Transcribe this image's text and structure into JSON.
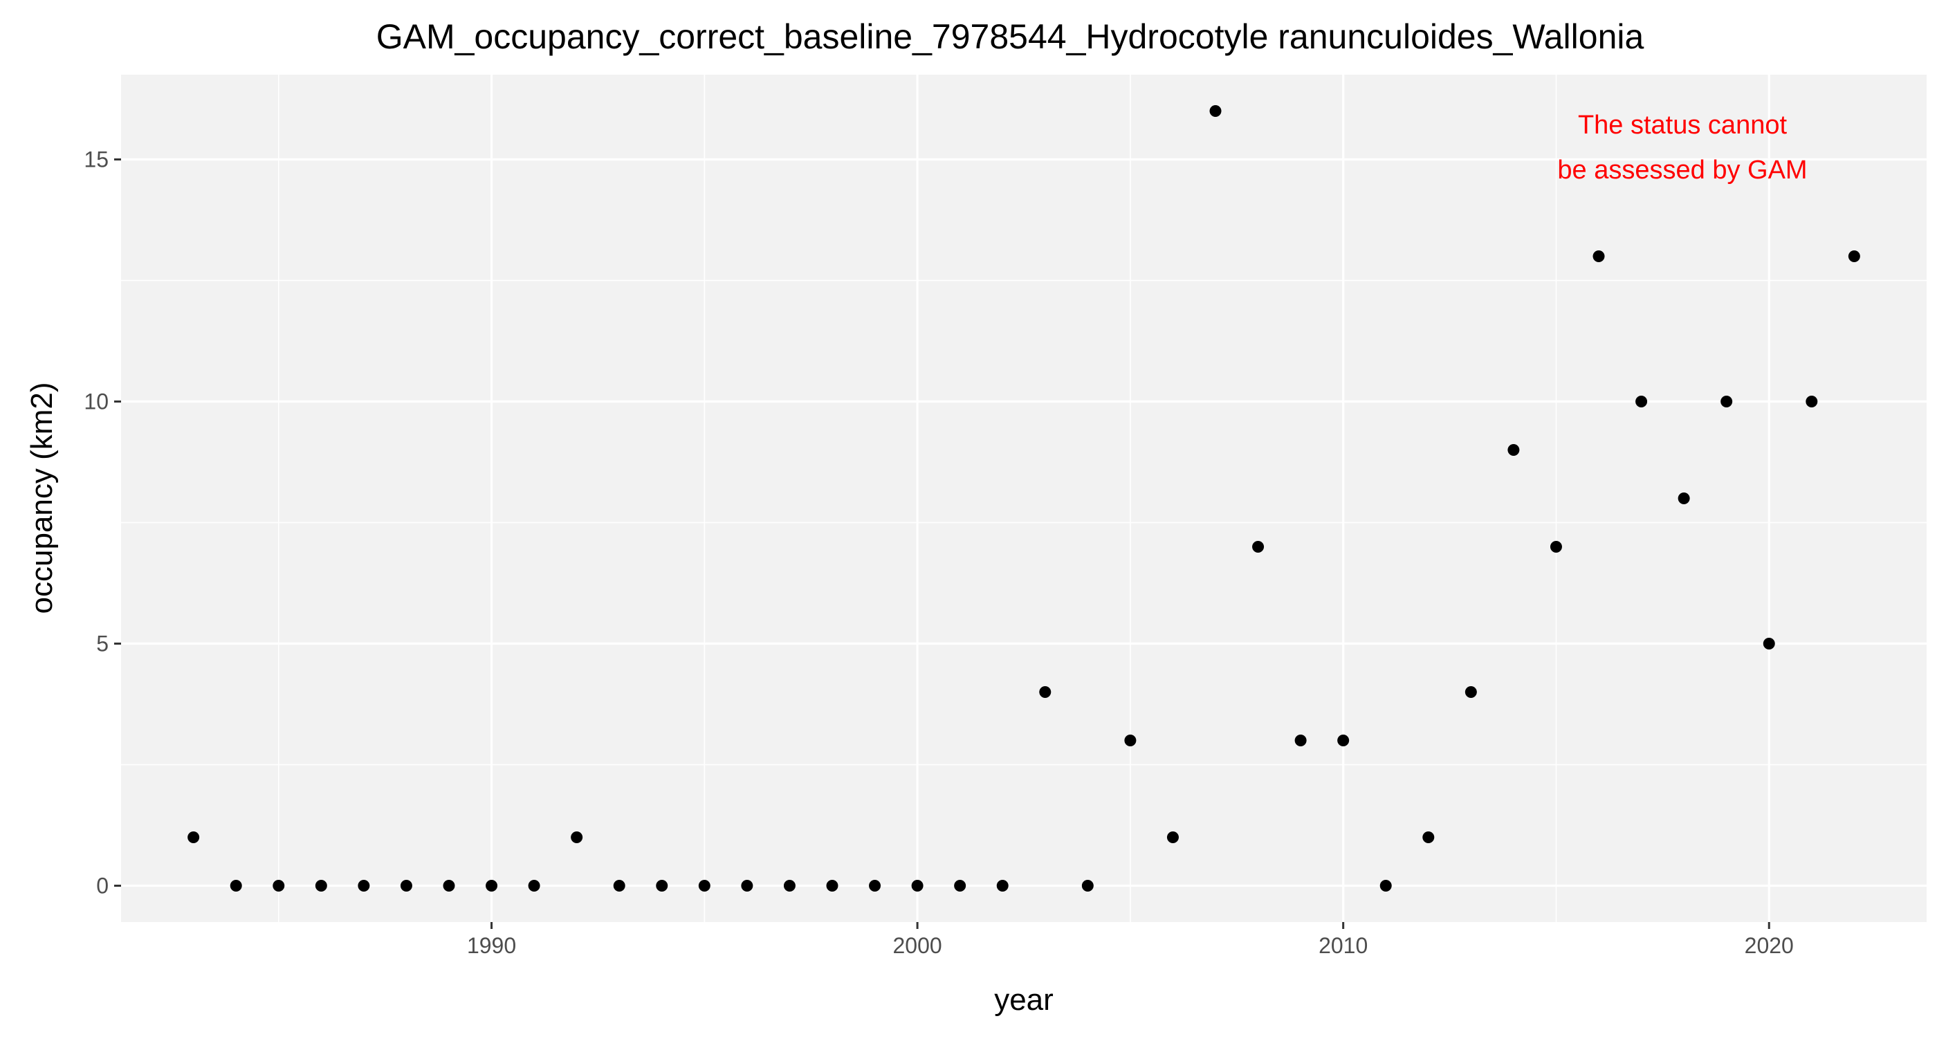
{
  "chart_data": {
    "type": "scatter",
    "title": "GAM_occupancy_correct_baseline_7978544_Hydrocotyle ranunculoides_Wallonia",
    "xlabel": "year",
    "ylabel": "occupancy (km2)",
    "xlim": [
      1981.3,
      2023.7
    ],
    "ylim": [
      -0.75,
      16.75
    ],
    "x_ticks": [
      1990,
      2000,
      2010,
      2020
    ],
    "y_ticks": [
      0,
      5,
      10,
      15
    ],
    "x_tick_labels": [
      "1990",
      "2000",
      "2010",
      "2020"
    ],
    "y_tick_labels": [
      "0",
      "5",
      "10",
      "15"
    ],
    "grid": true,
    "panel_background": "#f2f2f2",
    "grid_color": "#ffffff",
    "point_color": "#000000",
    "annotation": {
      "lines": [
        "The status cannot",
        "be assessed by GAM"
      ],
      "color": "#ff0000",
      "position": "top-right"
    },
    "x": [
      1983,
      1984,
      1985,
      1986,
      1987,
      1988,
      1989,
      1990,
      1991,
      1992,
      1993,
      1994,
      1995,
      1996,
      1997,
      1998,
      1999,
      2000,
      2001,
      2002,
      2003,
      2004,
      2005,
      2006,
      2007,
      2008,
      2009,
      2010,
      2011,
      2012,
      2013,
      2014,
      2015,
      2016,
      2017,
      2018,
      2019,
      2020,
      2021,
      2022
    ],
    "y": [
      1,
      0,
      0,
      0,
      0,
      0,
      0,
      0,
      0,
      1,
      0,
      0,
      0,
      0,
      0,
      0,
      0,
      0,
      0,
      0,
      4,
      0,
      3,
      1,
      16,
      7,
      3,
      3,
      0,
      1,
      4,
      9,
      7,
      13,
      10,
      8,
      10,
      5,
      10,
      13
    ]
  }
}
